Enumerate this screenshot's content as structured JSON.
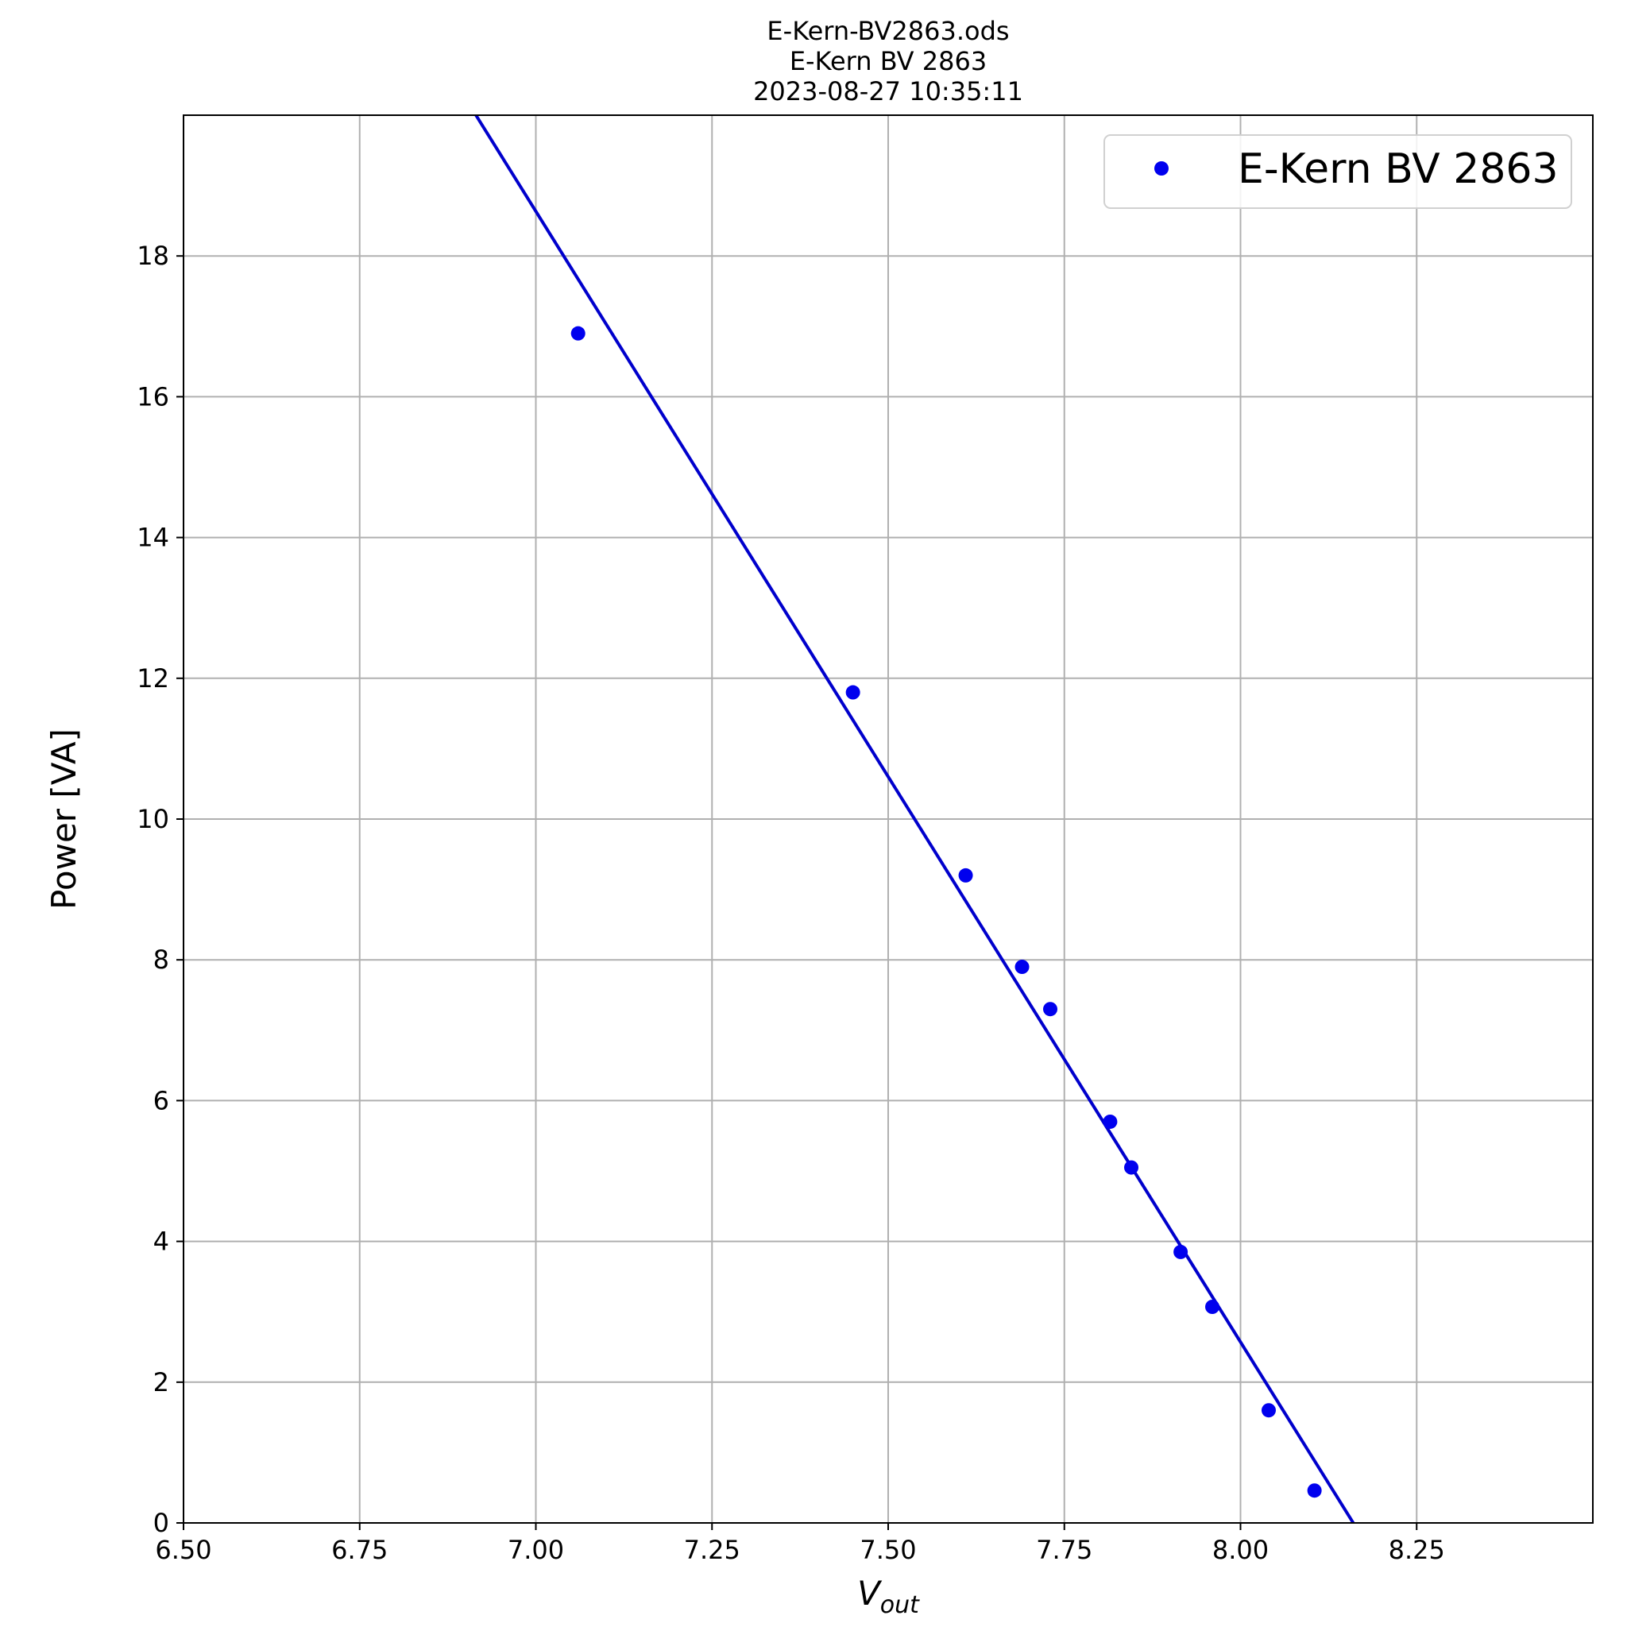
{
  "chart_data": {
    "type": "scatter",
    "title_lines": [
      "E-Kern-BV2863.ods",
      "E-Kern BV 2863",
      "2023-08-27 10:35:11"
    ],
    "xlabel_main": "V",
    "xlabel_sub": "out",
    "ylabel": "Power [VA]",
    "xlim": [
      6.5,
      8.5
    ],
    "ylim": [
      0,
      20
    ],
    "xticks": [
      6.5,
      6.75,
      7.0,
      7.25,
      7.5,
      7.75,
      8.0,
      8.25
    ],
    "xtick_labels": [
      "6.50",
      "6.75",
      "7.00",
      "7.25",
      "7.50",
      "7.75",
      "8.00",
      "8.25"
    ],
    "yticks": [
      0,
      2,
      4,
      6,
      8,
      10,
      12,
      14,
      16,
      18
    ],
    "ytick_labels": [
      "0",
      "2",
      "4",
      "6",
      "8",
      "10",
      "12",
      "14",
      "16",
      "18"
    ],
    "grid": true,
    "legend_position": "top-right",
    "series": [
      {
        "name": "E-Kern BV 2863",
        "color": "#0000ee",
        "marker": "circle",
        "x": [
          7.06,
          7.45,
          7.61,
          7.69,
          7.73,
          7.815,
          7.845,
          7.915,
          7.96,
          8.04,
          8.105
        ],
        "y": [
          16.9,
          11.8,
          9.2,
          7.9,
          7.3,
          5.7,
          5.05,
          3.85,
          3.07,
          1.6,
          0.46
        ]
      }
    ],
    "fit_line": {
      "color": "#0000cc",
      "x": [
        6.915,
        8.16
      ],
      "y": [
        20.0,
        0.0
      ]
    }
  }
}
